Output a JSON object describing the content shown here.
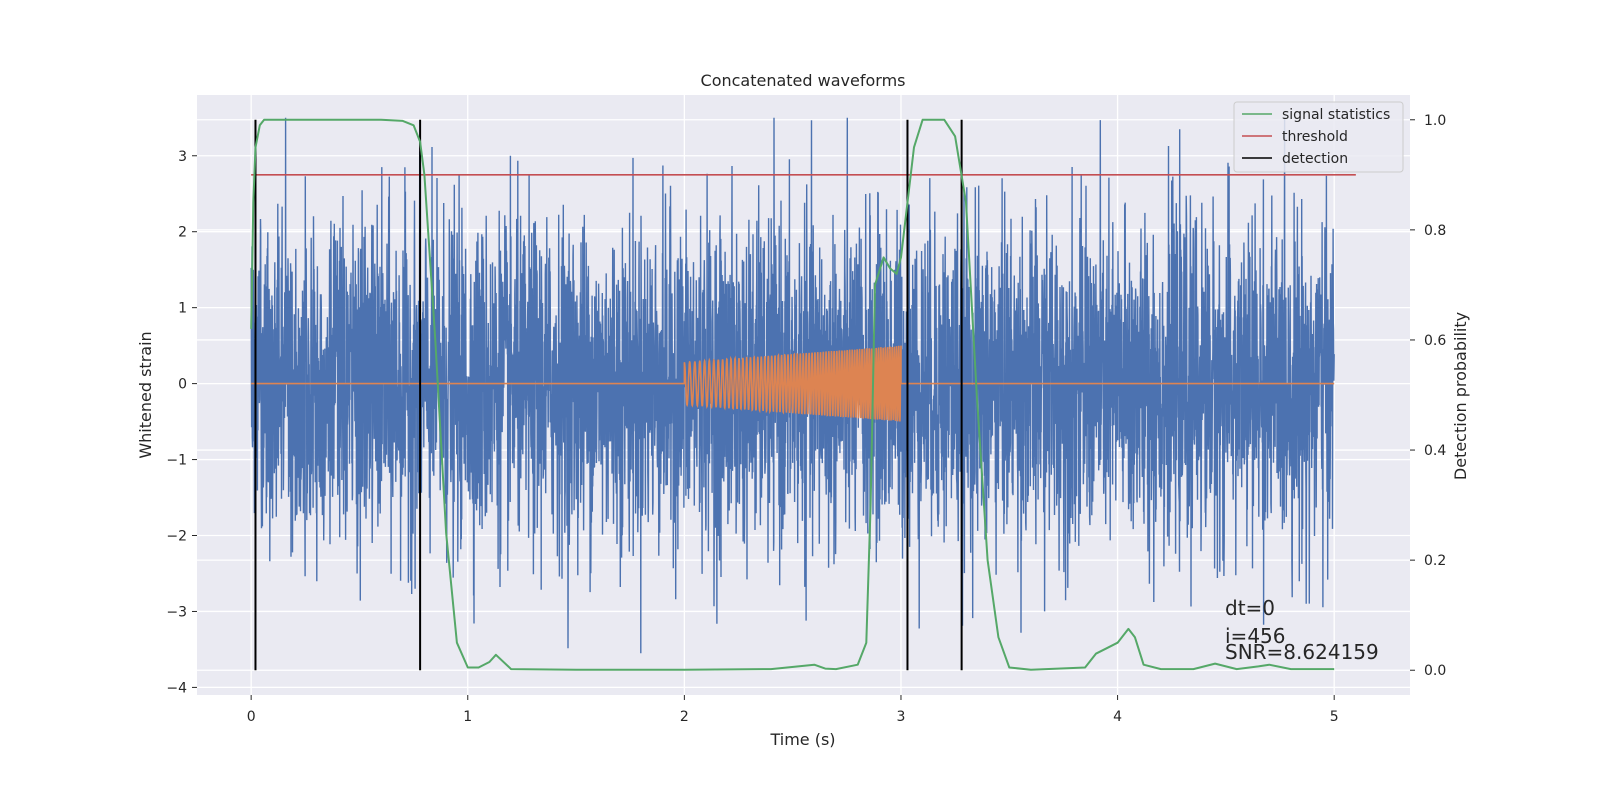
{
  "chart_data": {
    "type": "line",
    "title": "Concatenated waveforms",
    "xlabel": "Time (s)",
    "ylabel": "Whitened strain",
    "y2label": "Detection probability",
    "xlim": [
      -0.25,
      5.35
    ],
    "ylim": [
      -4.1,
      3.8
    ],
    "y2lim": [
      -0.045,
      1.045
    ],
    "xticks": [
      0,
      1,
      2,
      3,
      4,
      5
    ],
    "yticks": [
      -4,
      -3,
      -2,
      -1,
      0,
      1,
      2,
      3
    ],
    "y2ticks": [
      0.0,
      0.2,
      0.4,
      0.6,
      0.8,
      1.0
    ],
    "grid": true,
    "legend_position": "top-right",
    "legend": [
      {
        "label": "signal statistics",
        "color": "#55a868"
      },
      {
        "label": "threshold",
        "color": "#c44e52"
      },
      {
        "label": "detection",
        "color": "#000000"
      }
    ],
    "strain": {
      "color": "#4c72b0",
      "x_range": [
        0,
        5
      ],
      "approx_amplitude_range": [
        -3.7,
        3.5
      ]
    },
    "template": {
      "color": "#dd8452",
      "x_range": [
        2,
        3
      ],
      "amplitude_start": 0.28,
      "amplitude_end": 0.5
    },
    "signal_statistics": {
      "x": [
        0,
        0.01,
        0.02,
        0.04,
        0.06,
        0.1,
        0.3,
        0.6,
        0.7,
        0.75,
        0.78,
        0.8,
        0.85,
        0.9,
        0.95,
        1.0,
        1.05,
        1.1,
        1.13,
        1.2,
        1.5,
        2.0,
        2.4,
        2.6,
        2.65,
        2.7,
        2.8,
        2.84,
        2.86,
        2.88,
        2.92,
        2.95,
        2.98,
        3.0,
        3.03,
        3.06,
        3.1,
        3.2,
        3.25,
        3.3,
        3.35,
        3.4,
        3.45,
        3.5,
        3.6,
        3.85,
        3.9,
        3.95,
        4.0,
        4.05,
        4.08,
        4.12,
        4.2,
        4.35,
        4.45,
        4.55,
        4.65,
        4.7,
        4.8,
        5.0
      ],
      "y": [
        0.62,
        0.85,
        0.95,
        0.99,
        1.0,
        1.0,
        1.0,
        1.0,
        0.998,
        0.99,
        0.96,
        0.9,
        0.6,
        0.25,
        0.05,
        0.005,
        0.005,
        0.015,
        0.028,
        0.002,
        0.001,
        0.001,
        0.002,
        0.01,
        0.003,
        0.002,
        0.01,
        0.05,
        0.3,
        0.7,
        0.75,
        0.73,
        0.72,
        0.75,
        0.85,
        0.95,
        1.0,
        1.0,
        0.97,
        0.85,
        0.5,
        0.2,
        0.06,
        0.005,
        0.001,
        0.005,
        0.03,
        0.04,
        0.05,
        0.075,
        0.06,
        0.01,
        0.002,
        0.002,
        0.012,
        0.002,
        0.007,
        0.01,
        0.002,
        0.002
      ]
    },
    "threshold": {
      "y": 0.9,
      "x_range": [
        0,
        5.1
      ]
    },
    "detections": [
      0.02,
      0.78,
      3.03,
      3.28
    ],
    "annotations": [
      "dt=0",
      "i=456",
      "SNR=8.624159"
    ]
  }
}
